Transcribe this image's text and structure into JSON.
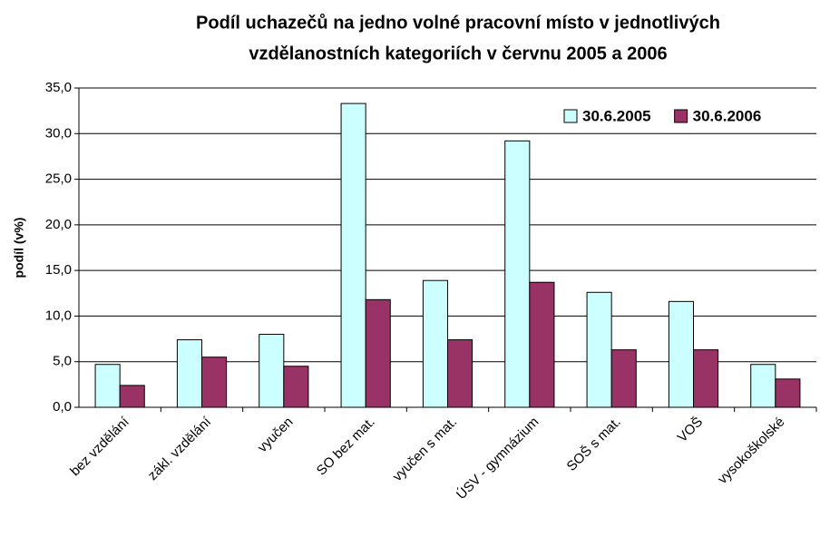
{
  "chart_data": {
    "type": "bar",
    "title": [
      "Podíl uchazečů na jedno volné pracovní místo v jednotlivých",
      "vzdělanostních kategoriích v červnu 2005 a 2006"
    ],
    "y_label": "podíl (v%)",
    "categories": [
      "bez vzdělání",
      "zákl. vzdělání",
      "vyučen",
      "SO bez mat.",
      "vyučen s mat.",
      "ÚSV - gymnázium",
      "SOŠ s mat.",
      "VOŠ",
      "vysokoškolské"
    ],
    "series": [
      {
        "name": "30.6.2005",
        "color": "#ccffff",
        "values": [
          4.7,
          7.4,
          8.0,
          33.3,
          13.9,
          29.2,
          12.6,
          11.6,
          4.7
        ]
      },
      {
        "name": "30.6.2006",
        "color": "#993366",
        "values": [
          2.4,
          5.5,
          4.5,
          11.8,
          7.4,
          13.7,
          6.3,
          6.3,
          3.1
        ]
      }
    ],
    "ylim": [
      0,
      35
    ],
    "yticks": [
      {
        "value": 0,
        "label": "0,0"
      },
      {
        "value": 5,
        "label": "5,0"
      },
      {
        "value": 10,
        "label": "10,0"
      },
      {
        "value": 15,
        "label": "15,0"
      },
      {
        "value": 20,
        "label": "20,0"
      },
      {
        "value": 25,
        "label": "25,0"
      },
      {
        "value": 30,
        "label": "30,0"
      },
      {
        "value": 35,
        "label": "35,0"
      }
    ],
    "grid": true,
    "legend": "top-right"
  }
}
